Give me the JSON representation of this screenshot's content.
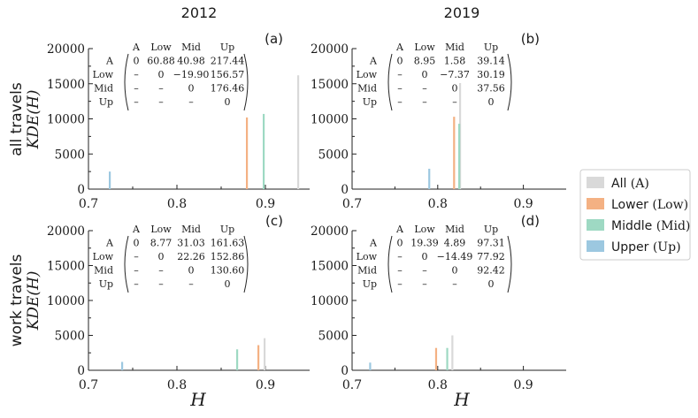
{
  "column_titles": [
    "2012",
    "2019"
  ],
  "row_labels": [
    {
      "line1": "all travels",
      "line2": "KDE(H)"
    },
    {
      "line1": "work travels",
      "line2": "KDE(H)"
    }
  ],
  "x_axis_label": "H",
  "legend": [
    {
      "name": "All",
      "tag": "(A)",
      "color": "#d9d9d9"
    },
    {
      "name": "Lower",
      "tag": "(Low)",
      "color": "#f4b183"
    },
    {
      "name": "Middle",
      "tag": "(Mid)",
      "color": "#9ed9c3"
    },
    {
      "name": "Upper",
      "tag": "(Up)",
      "color": "#9cc8e0"
    }
  ],
  "chart_data": [
    {
      "type": "bar",
      "panel_label": "(a)",
      "year": "2012",
      "row": "all travels",
      "xlim": [
        0.7,
        0.95
      ],
      "ylim": [
        0,
        20000
      ],
      "xticks": [
        "0.7",
        "0.8",
        "0.9"
      ],
      "yticks": [
        "0",
        "5000",
        "10000",
        "15000",
        "20000"
      ],
      "series": [
        {
          "name": "All",
          "peak_x": 0.937,
          "peak_y": 16200
        },
        {
          "name": "Lower",
          "peak_x": 0.879,
          "peak_y": 10200
        },
        {
          "name": "Middle",
          "peak_x": 0.898,
          "peak_y": 10700
        },
        {
          "name": "Upper",
          "peak_x": 0.724,
          "peak_y": 2500
        }
      ],
      "matrix": {
        "header": [
          "A",
          "Low",
          "Mid",
          "Up"
        ],
        "rows": [
          {
            "label": "A",
            "cells": [
              "0",
              "60.88",
              "40.98",
              "217.44"
            ]
          },
          {
            "label": "Low",
            "cells": [
              "–",
              "0",
              "−19.90",
              "156.57"
            ]
          },
          {
            "label": "Mid",
            "cells": [
              "–",
              "–",
              "0",
              "176.46"
            ]
          },
          {
            "label": "Up",
            "cells": [
              "–",
              "–",
              "–",
              "0"
            ]
          }
        ]
      }
    },
    {
      "type": "bar",
      "panel_label": "(b)",
      "year": "2019",
      "row": "all travels",
      "xlim": [
        0.7,
        0.95
      ],
      "ylim": [
        0,
        20000
      ],
      "xticks": [
        "0.7",
        "0.8",
        "0.9"
      ],
      "yticks": [
        "0",
        "5000",
        "10000",
        "15000",
        "20000"
      ],
      "series": [
        {
          "name": "All",
          "peak_x": 0.826,
          "peak_y": 15100
        },
        {
          "name": "Lower",
          "peak_x": 0.819,
          "peak_y": 10300
        },
        {
          "name": "Middle",
          "peak_x": 0.825,
          "peak_y": 9300
        },
        {
          "name": "Upper",
          "peak_x": 0.79,
          "peak_y": 2900
        }
      ],
      "matrix": {
        "header": [
          "A",
          "Low",
          "Mid",
          "Up"
        ],
        "rows": [
          {
            "label": "A",
            "cells": [
              "0",
              "8.95",
              "1.58",
              "39.14"
            ]
          },
          {
            "label": "Low",
            "cells": [
              "–",
              "0",
              "−7.37",
              "30.19"
            ]
          },
          {
            "label": "Mid",
            "cells": [
              "–",
              "–",
              "0",
              "37.56"
            ]
          },
          {
            "label": "Up",
            "cells": [
              "–",
              "–",
              "–",
              "0"
            ]
          }
        ]
      }
    },
    {
      "type": "bar",
      "panel_label": "(c)",
      "year": "2012",
      "row": "work travels",
      "xlim": [
        0.7,
        0.95
      ],
      "ylim": [
        0,
        20000
      ],
      "xticks": [
        "0.7",
        "0.8",
        "0.9"
      ],
      "yticks": [
        "0",
        "5000",
        "10000",
        "15000",
        "20000"
      ],
      "series": [
        {
          "name": "All",
          "peak_x": 0.899,
          "peak_y": 4600
        },
        {
          "name": "Lower",
          "peak_x": 0.892,
          "peak_y": 3600
        },
        {
          "name": "Middle",
          "peak_x": 0.868,
          "peak_y": 3000
        },
        {
          "name": "Upper",
          "peak_x": 0.738,
          "peak_y": 1200
        }
      ],
      "matrix": {
        "header": [
          "A",
          "Low",
          "Mid",
          "Up"
        ],
        "rows": [
          {
            "label": "A",
            "cells": [
              "0",
              "8.77",
              "31.03",
              "161.63"
            ]
          },
          {
            "label": "Low",
            "cells": [
              "–",
              "0",
              "22.26",
              "152.86"
            ]
          },
          {
            "label": "Mid",
            "cells": [
              "–",
              "–",
              "0",
              "130.60"
            ]
          },
          {
            "label": "Up",
            "cells": [
              "–",
              "–",
              "–",
              "0"
            ]
          }
        ]
      }
    },
    {
      "type": "bar",
      "panel_label": "(d)",
      "year": "2019",
      "row": "work travels",
      "xlim": [
        0.7,
        0.95
      ],
      "ylim": [
        0,
        20000
      ],
      "xticks": [
        "0.7",
        "0.8",
        "0.9"
      ],
      "yticks": [
        "0",
        "5000",
        "10000",
        "15000",
        "20000"
      ],
      "series": [
        {
          "name": "All",
          "peak_x": 0.817,
          "peak_y": 5000
        },
        {
          "name": "Lower",
          "peak_x": 0.798,
          "peak_y": 3200
        },
        {
          "name": "Middle",
          "peak_x": 0.811,
          "peak_y": 3200
        },
        {
          "name": "Upper",
          "peak_x": 0.721,
          "peak_y": 1100
        }
      ],
      "matrix": {
        "header": [
          "A",
          "Low",
          "Mid",
          "Up"
        ],
        "rows": [
          {
            "label": "A",
            "cells": [
              "0",
              "19.39",
              "4.89",
              "97.31"
            ]
          },
          {
            "label": "Low",
            "cells": [
              "–",
              "0",
              "−14.49",
              "77.92"
            ]
          },
          {
            "label": "Mid",
            "cells": [
              "–",
              "–",
              "0",
              "92.42"
            ]
          },
          {
            "label": "Up",
            "cells": [
              "–",
              "–",
              "–",
              "0"
            ]
          }
        ]
      }
    }
  ]
}
